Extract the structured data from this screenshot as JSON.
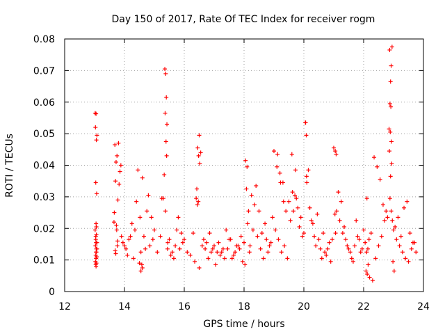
{
  "chart_data": {
    "type": "scatter",
    "title": "Day 150 of 2017, Rate Of TEC Index for receiver rogm",
    "xlabel": "GPS time / hours",
    "ylabel": "ROTI / TECUs",
    "xlim": [
      12,
      24
    ],
    "ylim": [
      0,
      0.08
    ],
    "xticks": [
      "12",
      "14",
      "16",
      "18",
      "20",
      "22",
      "24"
    ],
    "yticks": [
      "0",
      "0.01",
      "0.02",
      "0.03",
      "0.04",
      "0.05",
      "0.06",
      "0.07",
      "0.08"
    ],
    "grid": true,
    "marker": "+",
    "color": "#ff0000",
    "series": [
      {
        "name": "ROTI",
        "x": [
          13.02,
          13.05,
          13.08,
          13.03,
          13.06,
          13.04,
          13.07,
          13.05,
          13.02,
          13.06,
          13.04,
          13.05,
          13.03,
          13.08,
          13.06,
          13.04,
          13.07,
          13.05,
          13.03,
          13.06,
          13.04,
          13.05,
          13.06,
          13.08,
          13.04,
          13.06,
          13.05,
          13.65,
          13.72,
          13.8,
          13.68,
          13.75,
          13.85,
          13.7,
          13.78,
          13.66,
          13.74,
          13.9,
          13.95,
          14.0,
          13.82,
          13.88,
          13.73,
          13.69,
          13.77,
          13.71,
          13.76,
          14.05,
          14.15,
          14.25,
          14.35,
          14.45,
          14.55,
          14.65,
          14.75,
          14.85,
          14.95,
          14.1,
          14.3,
          14.5,
          14.7,
          14.9,
          14.2,
          14.4,
          14.6,
          14.8,
          14.55,
          14.6,
          14.58,
          14.52,
          15.0,
          15.1,
          15.2,
          15.3,
          15.35,
          15.38,
          15.4,
          15.42,
          15.36,
          15.39,
          15.41,
          15.33,
          15.37,
          15.44,
          15.5,
          15.6,
          15.7,
          15.8,
          15.9,
          15.25,
          15.45,
          15.55,
          15.65,
          15.75,
          15.85,
          15.95,
          16.0,
          16.1,
          16.2,
          16.3,
          16.4,
          16.45,
          16.5,
          16.55,
          16.48,
          16.52,
          16.42,
          16.47,
          16.6,
          16.7,
          16.8,
          16.9,
          16.35,
          16.65,
          16.75,
          16.85,
          16.95,
          16.44,
          16.5,
          17.0,
          17.1,
          17.2,
          17.3,
          17.4,
          17.5,
          17.6,
          17.7,
          17.8,
          17.9,
          17.05,
          17.15,
          17.25,
          17.35,
          17.45,
          17.55,
          17.65,
          17.75,
          17.85,
          17.95,
          18.0,
          18.05,
          18.1,
          18.15,
          18.2,
          18.3,
          18.4,
          18.5,
          18.6,
          18.7,
          18.8,
          18.9,
          18.03,
          18.08,
          18.25,
          18.35,
          18.45,
          18.55,
          18.65,
          18.75,
          18.85,
          18.95,
          18.12,
          18.18,
          19.0,
          19.1,
          19.2,
          19.3,
          19.4,
          19.5,
          19.6,
          19.7,
          19.8,
          19.9,
          19.05,
          19.15,
          19.25,
          19.35,
          19.45,
          19.55,
          19.65,
          19.75,
          19.85,
          19.95,
          19.12,
          19.22,
          19.32,
          19.62,
          19.72,
          20.0,
          20.05,
          20.08,
          20.1,
          20.2,
          20.3,
          20.4,
          20.5,
          20.6,
          20.7,
          20.8,
          20.9,
          20.15,
          20.25,
          20.35,
          20.45,
          20.55,
          20.65,
          20.75,
          20.85,
          20.95,
          20.06,
          20.09,
          21.0,
          21.05,
          21.08,
          21.1,
          21.2,
          21.3,
          21.4,
          21.5,
          21.6,
          21.7,
          21.8,
          21.9,
          21.15,
          21.25,
          21.35,
          21.45,
          21.55,
          21.65,
          21.75,
          21.85,
          21.95,
          21.06,
          21.04,
          22.0,
          22.05,
          22.1,
          22.15,
          22.2,
          22.3,
          22.4,
          22.5,
          22.6,
          22.7,
          22.8,
          22.08,
          22.12,
          22.18,
          22.25,
          22.35,
          22.45,
          22.55,
          22.65,
          22.75,
          22.11,
          22.14,
          22.85,
          22.88,
          22.9,
          22.92,
          22.95,
          22.87,
          22.91,
          22.89,
          22.93,
          22.86,
          22.94,
          22.9,
          22.88,
          22.92,
          22.96,
          23.0,
          23.1,
          23.2,
          23.3,
          23.4,
          23.5,
          23.6,
          23.7,
          23.05,
          23.15,
          23.25,
          23.35,
          23.45,
          23.55,
          23.65,
          23.75,
          22.98,
          23.02
        ],
        "y": [
          0.0565,
          0.0563,
          0.0495,
          0.052,
          0.048,
          0.0345,
          0.031,
          0.0215,
          0.0195,
          0.018,
          0.0165,
          0.0155,
          0.0145,
          0.0135,
          0.0125,
          0.0115,
          0.011,
          0.0105,
          0.0095,
          0.009,
          0.0085,
          0.008,
          0.0135,
          0.0155,
          0.0175,
          0.0205,
          0.0125,
          0.022,
          0.041,
          0.047,
          0.0465,
          0.043,
          0.038,
          0.035,
          0.029,
          0.025,
          0.0195,
          0.0175,
          0.0155,
          0.0145,
          0.034,
          0.04,
          0.021,
          0.013,
          0.016,
          0.012,
          0.0145,
          0.0135,
          0.0165,
          0.0215,
          0.0195,
          0.0385,
          0.0125,
          0.0175,
          0.0255,
          0.0145,
          0.0165,
          0.0115,
          0.0105,
          0.009,
          0.0135,
          0.0235,
          0.0175,
          0.0285,
          0.036,
          0.0305,
          0.0065,
          0.0075,
          0.0085,
          0.0235,
          0.0195,
          0.0125,
          0.0175,
          0.0295,
          0.0705,
          0.069,
          0.0615,
          0.053,
          0.0565,
          0.0475,
          0.043,
          0.037,
          0.0255,
          0.0135,
          0.0165,
          0.0125,
          0.0145,
          0.0235,
          0.0185,
          0.0295,
          0.0155,
          0.0115,
          0.0105,
          0.0195,
          0.0135,
          0.0155,
          0.0165,
          0.0125,
          0.0115,
          0.0185,
          0.0295,
          0.0455,
          0.0495,
          0.044,
          0.043,
          0.0405,
          0.0325,
          0.0285,
          0.0145,
          0.0135,
          0.0105,
          0.0125,
          0.0095,
          0.0165,
          0.0155,
          0.0185,
          0.0135,
          0.0275,
          0.0075,
          0.0145,
          0.0125,
          0.0115,
          0.0135,
          0.0195,
          0.0165,
          0.0105,
          0.0125,
          0.0145,
          0.0175,
          0.0085,
          0.0155,
          0.0125,
          0.0105,
          0.0135,
          0.0165,
          0.0115,
          0.0145,
          0.0135,
          0.0095,
          0.0155,
          0.0415,
          0.0395,
          0.0255,
          0.0145,
          0.0195,
          0.0335,
          0.0255,
          0.0185,
          0.0215,
          0.0125,
          0.0155,
          0.0085,
          0.0325,
          0.0305,
          0.0275,
          0.0175,
          0.0135,
          0.0105,
          0.0165,
          0.0145,
          0.0235,
          0.0215,
          0.0125,
          0.0445,
          0.0395,
          0.0375,
          0.0345,
          0.0255,
          0.0285,
          0.0435,
          0.0305,
          0.0265,
          0.0235,
          0.0195,
          0.0165,
          0.0125,
          0.0145,
          0.0105,
          0.0225,
          0.0255,
          0.0295,
          0.0205,
          0.0175,
          0.0435,
          0.0345,
          0.0285,
          0.0315,
          0.0385,
          0.0185,
          0.0535,
          0.0495,
          0.0345,
          0.0265,
          0.0215,
          0.0145,
          0.0165,
          0.0105,
          0.0125,
          0.0135,
          0.0095,
          0.0385,
          0.0225,
          0.0175,
          0.0245,
          0.0135,
          0.0185,
          0.0115,
          0.0155,
          0.0165,
          0.0535,
          0.0365,
          0.0455,
          0.0445,
          0.0435,
          0.0255,
          0.0225,
          0.0185,
          0.0165,
          0.0135,
          0.0105,
          0.0145,
          0.0175,
          0.0125,
          0.0315,
          0.0285,
          0.0205,
          0.0145,
          0.0125,
          0.0095,
          0.0225,
          0.0165,
          0.0135,
          0.0185,
          0.0245,
          0.0195,
          0.0155,
          0.0125,
          0.0085,
          0.0045,
          0.0035,
          0.0105,
          0.0145,
          0.0175,
          0.0225,
          0.0235,
          0.0065,
          0.0055,
          0.0165,
          0.0185,
          0.0425,
          0.0395,
          0.0355,
          0.0275,
          0.0255,
          0.0295,
          0.0135,
          0.0515,
          0.0595,
          0.0665,
          0.0715,
          0.0775,
          0.0765,
          0.0585,
          0.0505,
          0.0475,
          0.0445,
          0.0405,
          0.0365,
          0.0295,
          0.0255,
          0.0225,
          0.0195,
          0.0165,
          0.0145,
          0.0125,
          0.0105,
          0.0095,
          0.0135,
          0.0155,
          0.0205,
          0.0235,
          0.0175,
          0.0265,
          0.0285,
          0.0185,
          0.0155,
          0.0125,
          0.0095,
          0.0065
        ]
      }
    ]
  }
}
